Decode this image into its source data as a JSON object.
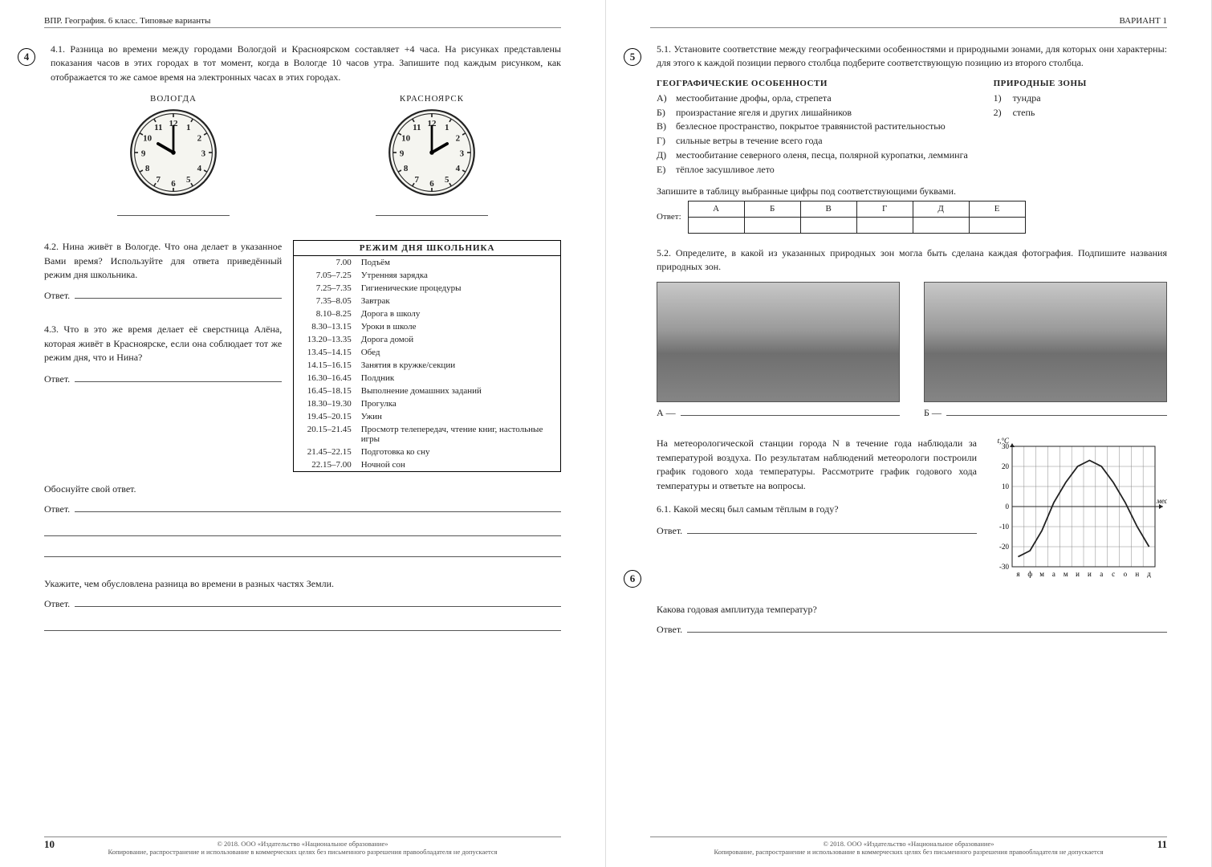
{
  "header_left": "ВПР. География. 6 класс. Типовые варианты",
  "header_right": "ВАРИАНТ 1",
  "q4": {
    "num": "4",
    "text_41": "4.1. Разница во времени между городами Вологдой и Красноярском составляет +4 часа. На рисунках представлены показания часов в этих городах в тот момент, когда в Вологде 10 часов утра. Запишите под каждым рисунком, как отображается то же самое время на электронных часах в этих городах.",
    "city1": "ВОЛОГДА",
    "city2": "КРАСНОЯРСК",
    "clock1": {
      "hour": 10,
      "minute": 0
    },
    "clock2": {
      "hour": 2,
      "minute": 0
    },
    "text_42": "4.2. Нина живёт в Вологде. Что она делает в указанное Вами время? Используйте для ответа приведённый режим дня школьника.",
    "text_43": "4.3. Что в это же время делает её сверстница Алёна, которая живёт в Красноярске, если она соблюдает тот же режим дня, что и Нина?",
    "justify": "Обоснуйте свой ответ.",
    "extra": "Укажите, чем обусловлена разница во времени в разных частях Земли.",
    "answer": "Ответ.",
    "schedule_title": "РЕЖИМ ДНЯ ШКОЛЬНИКА",
    "schedule": [
      [
        "7.00",
        "Подъём"
      ],
      [
        "7.05–7.25",
        "Утренняя зарядка"
      ],
      [
        "7.25–7.35",
        "Гигиенические процедуры"
      ],
      [
        "7.35–8.05",
        "Завтрак"
      ],
      [
        "8.10–8.25",
        "Дорога в школу"
      ],
      [
        "8.30–13.15",
        "Уроки в школе"
      ],
      [
        "13.20–13.35",
        "Дорога домой"
      ],
      [
        "13.45–14.15",
        "Обед"
      ],
      [
        "14.15–16.15",
        "Занятия в кружке/секции"
      ],
      [
        "16.30–16.45",
        "Полдник"
      ],
      [
        "16.45–18.15",
        "Выполнение домашних заданий"
      ],
      [
        "18.30–19.30",
        "Прогулка"
      ],
      [
        "19.45–20.15",
        "Ужин"
      ],
      [
        "20.15–21.45",
        "Просмотр телепередач, чтение книг, настольные игры"
      ],
      [
        "21.45–22.15",
        "Подготовка ко сну"
      ],
      [
        "22.15–7.00",
        "Ночной сон"
      ]
    ]
  },
  "q5": {
    "num": "5",
    "text_51": "5.1. Установите соответствие между географическими особенностями и природными зонами, для которых они характерны: для этого к каждой позиции первого столбца подберите соответствующую позицию из второго столбца.",
    "heading_feat": "ГЕОГРАФИЧЕСКИЕ ОСОБЕННОСТИ",
    "heading_zone": "ПРИРОДНЫЕ ЗОНЫ",
    "features": [
      [
        "А)",
        "местообитание дрофы, орла, стрепета"
      ],
      [
        "Б)",
        "произрастание ягеля и других лишайников"
      ],
      [
        "В)",
        "безлесное пространство, покрытое травянистой растительностью"
      ],
      [
        "Г)",
        "сильные ветры в течение всего года"
      ],
      [
        "Д)",
        "местообитание северного оленя, песца, полярной куропатки, лемминга"
      ],
      [
        "Е)",
        "тёплое засушливое лето"
      ]
    ],
    "zones": [
      [
        "1)",
        "тундра"
      ],
      [
        "2)",
        "степь"
      ]
    ],
    "instr": "Запишите в таблицу выбранные цифры под соответствующими буквами.",
    "ans_label": "Ответ:",
    "ans_cols": [
      "А",
      "Б",
      "В",
      "Г",
      "Д",
      "Е"
    ],
    "text_52": "5.2. Определите, в какой из указанных природных зон могла быть сделана каждая фотография. Подпишите названия природных зон.",
    "photo_a": "А —",
    "photo_b": "Б —"
  },
  "q6": {
    "num": "6",
    "text": "На метеорологической станции города N в течение года наблюдали за температурой воздуха. По результатам наблюдений метеорологи построили график годового хода температуры. Рассмотрите график годового хода температуры и ответьте на вопросы.",
    "q61": "6.1. Какой месяц был самым тёплым в году?",
    "q62": "Какова годовая амплитуда температур?",
    "answer": "Ответ.",
    "chart": {
      "type": "line",
      "ylabel": "t,°C",
      "xlabel": "месяц",
      "ylim": [
        -30,
        30
      ],
      "ytick_step": 10,
      "yticks": [
        30,
        20,
        10,
        0,
        -10,
        -20,
        -30
      ],
      "months": [
        "я",
        "ф",
        "м",
        "а",
        "м",
        "и",
        "и",
        "а",
        "с",
        "о",
        "н",
        "д"
      ],
      "values": [
        -25,
        -22,
        -12,
        2,
        12,
        20,
        23,
        20,
        12,
        2,
        -10,
        -20
      ],
      "line_color": "#222222",
      "line_width": 1.8,
      "grid_color": "#888888",
      "background_color": "#ffffff",
      "fontsize": 9
    }
  },
  "footer": {
    "copyright": "© 2018. ООО «Издательство «Национальное образование»",
    "notice": "Копирование, распространение и использование в коммерческих целях без письменного разрешения правообладателя не допускается",
    "page_left": "10",
    "page_right": "11"
  }
}
